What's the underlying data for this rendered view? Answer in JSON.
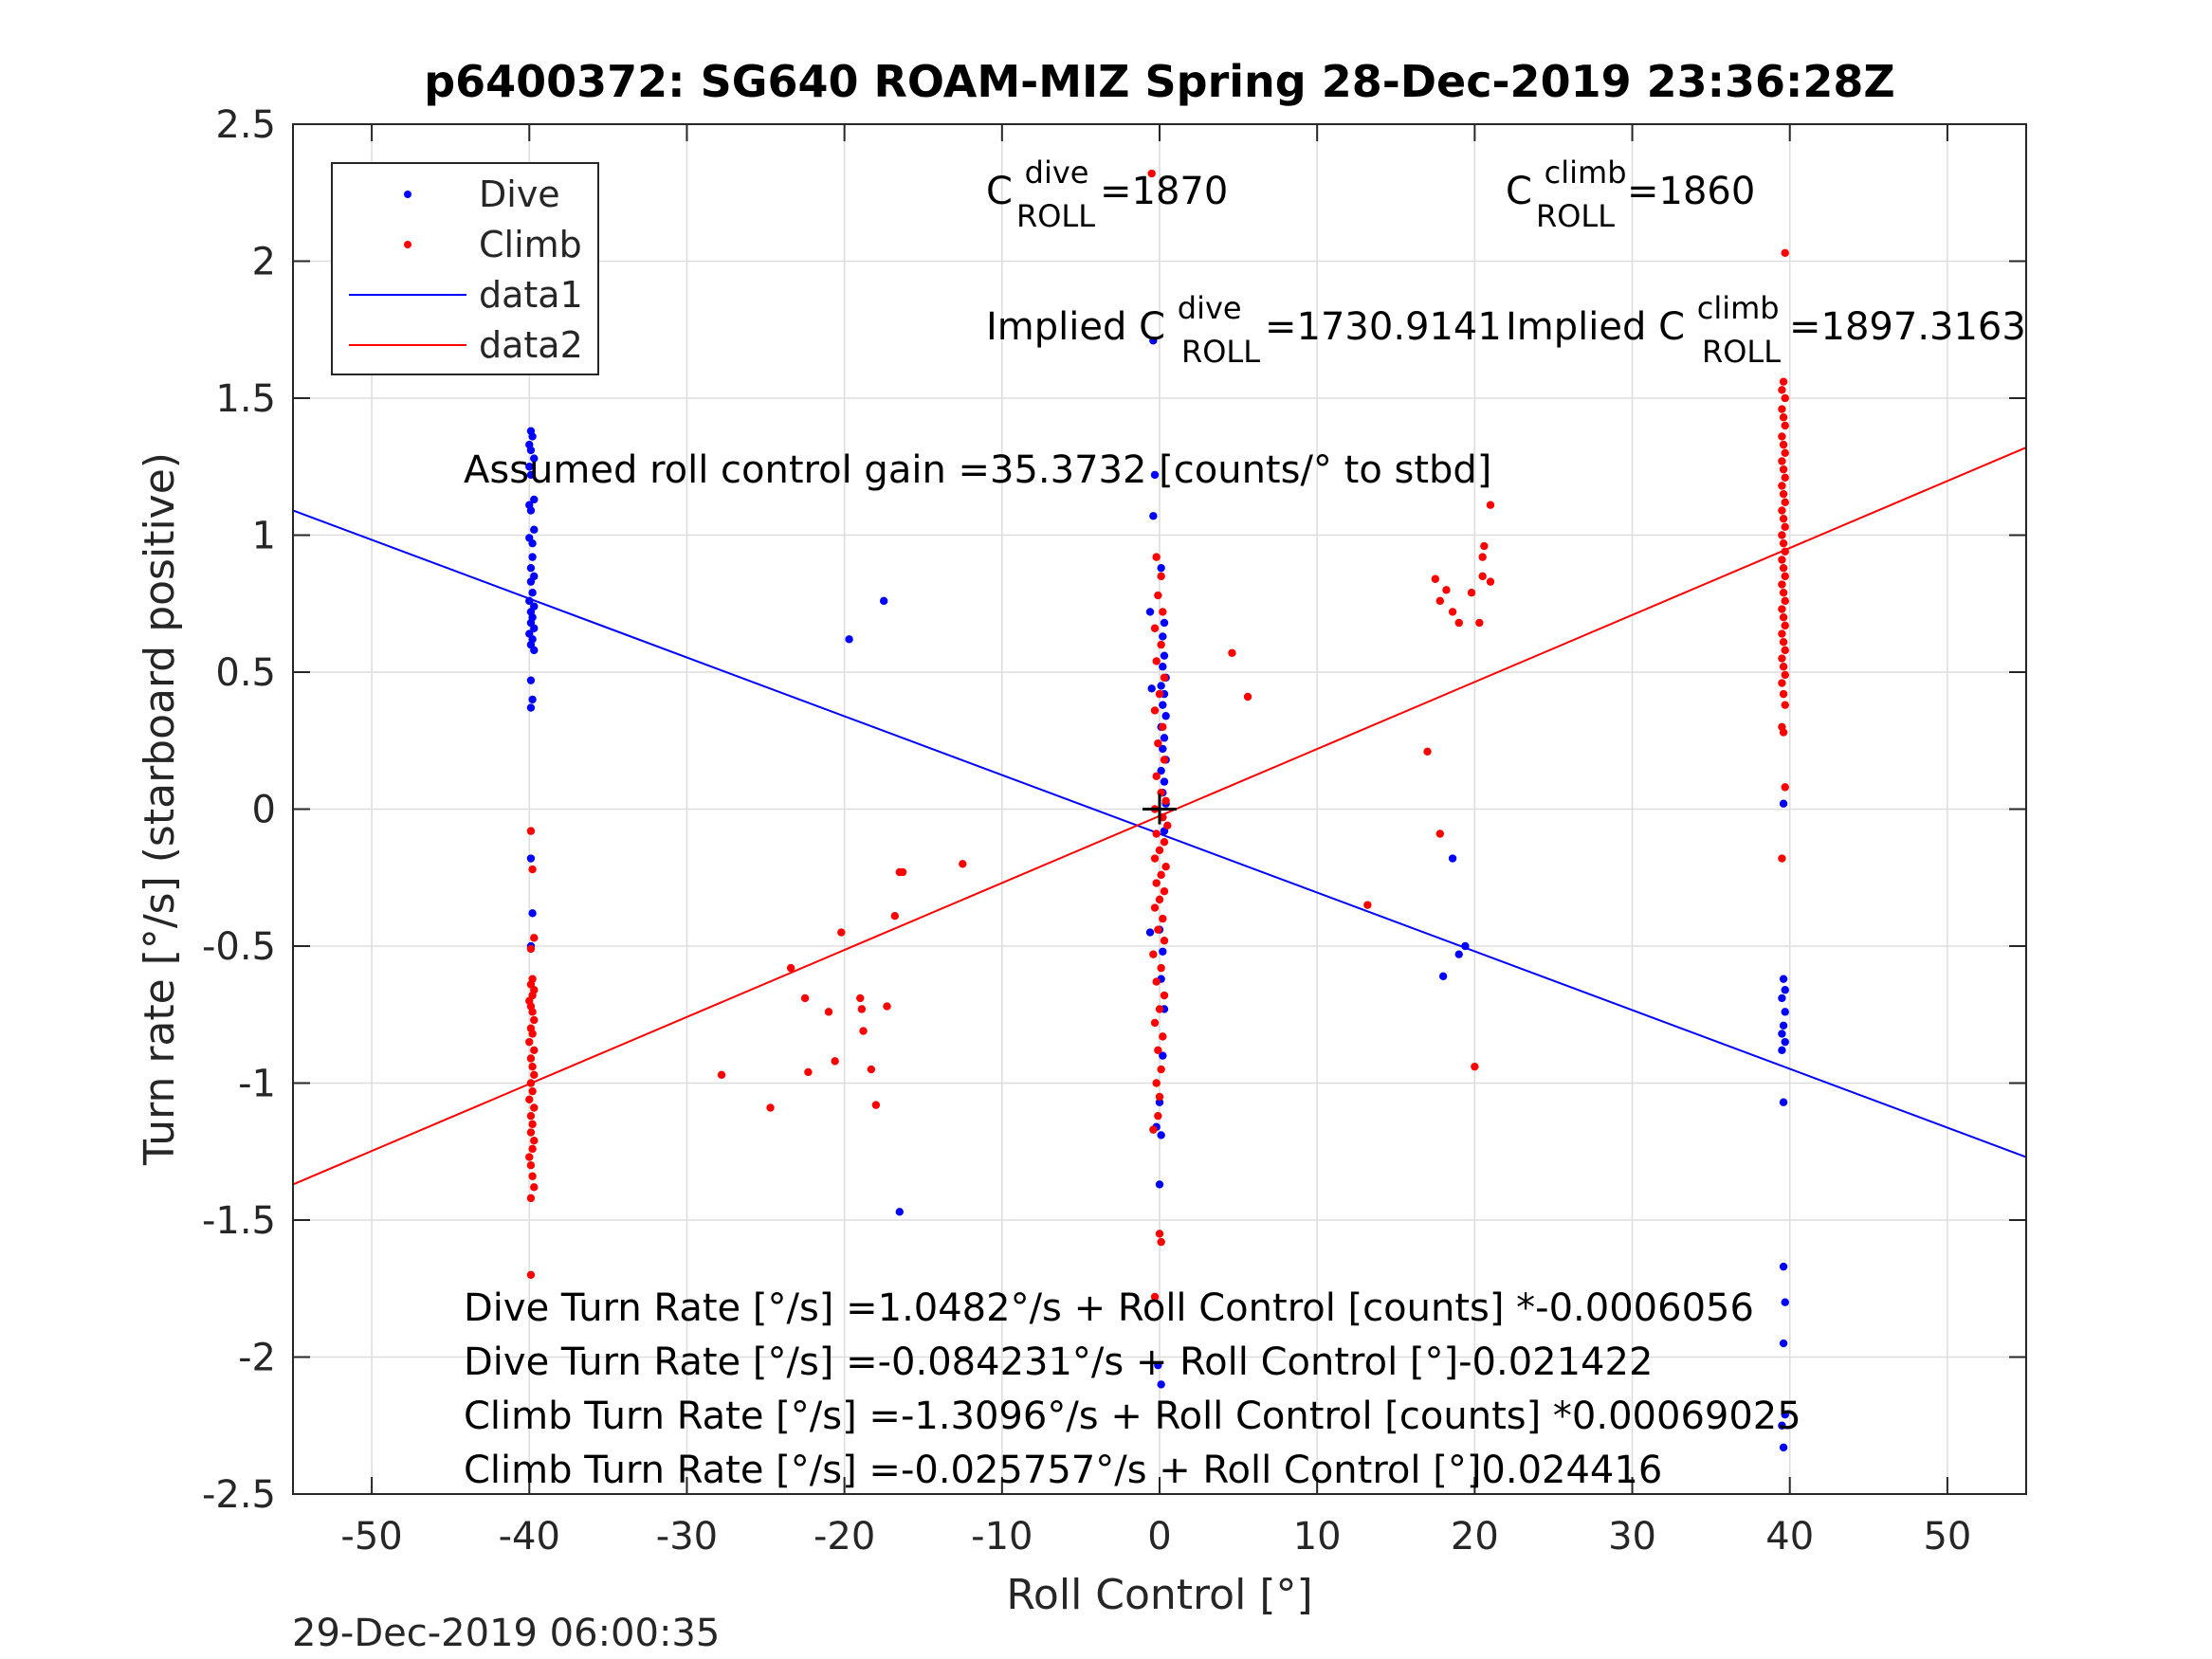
{
  "chart_data": {
    "type": "scatter",
    "title": "p6400372: SG640 ROAM-MIZ Spring 28-Dec-2019 23:36:28Z",
    "xlabel": "Roll Control [°]",
    "ylabel": "Turn rate [°/s] (starboard positive)",
    "xlim": [
      -55,
      55
    ],
    "ylim": [
      -2.5,
      2.5
    ],
    "grid": true,
    "legend_position": "top-left",
    "x_ticks": [
      -50,
      -40,
      -30,
      -20,
      -10,
      0,
      10,
      20,
      30,
      40,
      50
    ],
    "x_tick_labels": [
      "-50",
      "-40",
      "-30",
      "-20",
      "-10",
      "0",
      "10",
      "20",
      "30",
      "40",
      "50"
    ],
    "y_ticks": [
      -2.5,
      -2,
      -1.5,
      -1,
      -0.5,
      0,
      0.5,
      1,
      1.5,
      2,
      2.5
    ],
    "y_tick_labels": [
      "-2.5",
      "-2",
      "-1.5",
      "-1",
      "-0.5",
      "0",
      "0.5",
      "1",
      "1.5",
      "2",
      "2.5"
    ],
    "legend": [
      "Dive",
      "Climb",
      "data1",
      "data2"
    ],
    "colors": {
      "dive": "#0000ff",
      "climb": "#ff0000",
      "center_mark": "#000000"
    },
    "series": [
      {
        "name": "Dive",
        "kind": "points",
        "color": "#0000ff",
        "points": [
          [
            -39.9,
            1.38
          ],
          [
            -39.8,
            1.36
          ],
          [
            -40.0,
            1.33
          ],
          [
            -39.9,
            1.31
          ],
          [
            -39.7,
            1.28
          ],
          [
            -40.0,
            1.25
          ],
          [
            -39.9,
            1.22
          ],
          [
            -39.7,
            1.13
          ],
          [
            -40.0,
            1.11
          ],
          [
            -39.9,
            1.09
          ],
          [
            -39.7,
            1.02
          ],
          [
            -40.0,
            0.99
          ],
          [
            -39.8,
            0.97
          ],
          [
            -39.8,
            0.92
          ],
          [
            -39.9,
            0.88
          ],
          [
            -39.7,
            0.85
          ],
          [
            -39.9,
            0.83
          ],
          [
            -39.8,
            0.79
          ],
          [
            -40.0,
            0.76
          ],
          [
            -39.7,
            0.74
          ],
          [
            -39.9,
            0.72
          ],
          [
            -39.8,
            0.7
          ],
          [
            -39.9,
            0.68
          ],
          [
            -39.7,
            0.66
          ],
          [
            -40.0,
            0.64
          ],
          [
            -39.8,
            0.62
          ],
          [
            -39.9,
            0.6
          ],
          [
            -39.7,
            0.58
          ],
          [
            -39.9,
            0.47
          ],
          [
            -39.8,
            0.4
          ],
          [
            -39.9,
            0.37
          ],
          [
            -39.9,
            -0.18
          ],
          [
            -39.8,
            -0.38
          ],
          [
            -39.9,
            -0.5
          ],
          [
            -19.7,
            0.62
          ],
          [
            -17.5,
            0.76
          ],
          [
            -16.5,
            -1.47
          ],
          [
            -0.6,
            0.72
          ],
          [
            -0.5,
            0.44
          ],
          [
            -0.6,
            -0.45
          ],
          [
            -0.4,
            1.71
          ],
          [
            -0.3,
            1.22
          ],
          [
            -0.4,
            1.07
          ],
          [
            0.1,
            0.88
          ],
          [
            0.3,
            0.68
          ],
          [
            0.2,
            0.63
          ],
          [
            0.3,
            0.56
          ],
          [
            0.2,
            0.52
          ],
          [
            0.4,
            0.48
          ],
          [
            0.1,
            0.45
          ],
          [
            0.3,
            0.42
          ],
          [
            0.2,
            0.38
          ],
          [
            0.4,
            0.34
          ],
          [
            0.1,
            0.3
          ],
          [
            0.3,
            0.26
          ],
          [
            0.2,
            0.22
          ],
          [
            0.4,
            0.18
          ],
          [
            0.1,
            0.14
          ],
          [
            0.3,
            0.1
          ],
          [
            0.2,
            0.06
          ],
          [
            0.4,
            0.02
          ],
          [
            0.2,
            -0.03
          ],
          [
            0.3,
            -0.08
          ],
          [
            0.0,
            -0.44
          ],
          [
            0.2,
            -0.52
          ],
          [
            0.1,
            -0.62
          ],
          [
            0.3,
            -0.73
          ],
          [
            0.2,
            -0.9
          ],
          [
            0.0,
            -1.07
          ],
          [
            -0.2,
            -1.16
          ],
          [
            0.1,
            -1.19
          ],
          [
            0.0,
            -1.37
          ],
          [
            -0.1,
            -2.03
          ],
          [
            0.1,
            -2.1
          ],
          [
            18.0,
            -0.61
          ],
          [
            18.6,
            -0.18
          ],
          [
            19.0,
            -0.53
          ],
          [
            19.4,
            -0.5
          ],
          [
            39.6,
            0.02
          ],
          [
            39.6,
            -0.62
          ],
          [
            39.7,
            -0.66
          ],
          [
            39.5,
            -0.69
          ],
          [
            39.7,
            -0.74
          ],
          [
            39.6,
            -0.79
          ],
          [
            39.5,
            -0.82
          ],
          [
            39.7,
            -0.85
          ],
          [
            39.5,
            -0.88
          ],
          [
            39.6,
            -1.07
          ],
          [
            39.6,
            -1.67
          ],
          [
            39.7,
            -1.8
          ],
          [
            39.6,
            -1.95
          ],
          [
            39.7,
            -2.21
          ],
          [
            39.5,
            -2.25
          ],
          [
            39.6,
            -2.33
          ]
        ]
      },
      {
        "name": "Climb",
        "kind": "points",
        "color": "#ff0000",
        "points": [
          [
            -39.9,
            -0.08
          ],
          [
            -39.8,
            -0.22
          ],
          [
            -39.7,
            -0.47
          ],
          [
            -39.9,
            -0.51
          ],
          [
            -39.8,
            -0.62
          ],
          [
            -39.9,
            -0.64
          ],
          [
            -39.7,
            -0.66
          ],
          [
            -39.8,
            -0.68
          ],
          [
            -40.0,
            -0.7
          ],
          [
            -39.9,
            -0.72
          ],
          [
            -39.8,
            -0.74
          ],
          [
            -39.7,
            -0.77
          ],
          [
            -39.9,
            -0.8
          ],
          [
            -39.8,
            -0.82
          ],
          [
            -40.0,
            -0.85
          ],
          [
            -39.7,
            -0.88
          ],
          [
            -39.9,
            -0.91
          ],
          [
            -39.8,
            -0.94
          ],
          [
            -39.7,
            -0.97
          ],
          [
            -39.9,
            -1.0
          ],
          [
            -39.8,
            -1.03
          ],
          [
            -40.0,
            -1.06
          ],
          [
            -39.7,
            -1.09
          ],
          [
            -39.9,
            -1.12
          ],
          [
            -39.8,
            -1.15
          ],
          [
            -39.9,
            -1.18
          ],
          [
            -39.7,
            -1.21
          ],
          [
            -39.8,
            -1.24
          ],
          [
            -40.0,
            -1.27
          ],
          [
            -39.9,
            -1.3
          ],
          [
            -39.8,
            -1.34
          ],
          [
            -39.7,
            -1.38
          ],
          [
            -39.9,
            -1.42
          ],
          [
            -39.9,
            -1.7
          ],
          [
            -27.8,
            -0.97
          ],
          [
            -24.7,
            -1.09
          ],
          [
            -23.4,
            -0.58
          ],
          [
            -22.5,
            -0.69
          ],
          [
            -22.3,
            -0.96
          ],
          [
            -21.0,
            -0.74
          ],
          [
            -20.6,
            -0.92
          ],
          [
            -20.2,
            -0.45
          ],
          [
            -19.0,
            -0.69
          ],
          [
            -18.9,
            -0.73
          ],
          [
            -18.8,
            -0.81
          ],
          [
            -18.3,
            -0.95
          ],
          [
            -18.0,
            -1.08
          ],
          [
            -17.3,
            -0.72
          ],
          [
            -16.8,
            -0.39
          ],
          [
            -16.5,
            -0.23
          ],
          [
            -16.3,
            -0.23
          ],
          [
            -12.5,
            -0.2
          ],
          [
            -0.5,
            2.32
          ],
          [
            -0.2,
            0.92
          ],
          [
            0.1,
            0.85
          ],
          [
            -0.1,
            0.78
          ],
          [
            0.2,
            0.72
          ],
          [
            -0.3,
            0.66
          ],
          [
            0.1,
            0.6
          ],
          [
            -0.2,
            0.54
          ],
          [
            0.3,
            0.48
          ],
          [
            0.0,
            0.42
          ],
          [
            -0.3,
            0.36
          ],
          [
            0.2,
            0.3
          ],
          [
            -0.1,
            0.24
          ],
          [
            0.3,
            0.18
          ],
          [
            -0.2,
            0.12
          ],
          [
            0.1,
            0.06
          ],
          [
            0.4,
            0.03
          ],
          [
            -0.3,
            0.0
          ],
          [
            0.2,
            -0.03
          ],
          [
            0.5,
            -0.06
          ],
          [
            -0.2,
            -0.09
          ],
          [
            0.3,
            -0.12
          ],
          [
            0.0,
            -0.15
          ],
          [
            -0.3,
            -0.18
          ],
          [
            0.4,
            -0.21
          ],
          [
            0.1,
            -0.24
          ],
          [
            -0.2,
            -0.27
          ],
          [
            0.3,
            -0.3
          ],
          [
            0.0,
            -0.33
          ],
          [
            -0.3,
            -0.36
          ],
          [
            0.2,
            -0.4
          ],
          [
            -0.1,
            -0.44
          ],
          [
            0.3,
            -0.48
          ],
          [
            -0.4,
            -0.53
          ],
          [
            0.1,
            -0.58
          ],
          [
            -0.2,
            -0.63
          ],
          [
            0.3,
            -0.68
          ],
          [
            0.0,
            -0.73
          ],
          [
            -0.3,
            -0.78
          ],
          [
            0.2,
            -0.83
          ],
          [
            -0.1,
            -0.88
          ],
          [
            0.1,
            -0.95
          ],
          [
            -0.2,
            -1.0
          ],
          [
            0.0,
            -1.05
          ],
          [
            -0.1,
            -1.12
          ],
          [
            -0.4,
            -1.17
          ],
          [
            -0.3,
            -1.78
          ],
          [
            0.0,
            -1.55
          ],
          [
            0.1,
            -1.58
          ],
          [
            4.6,
            0.57
          ],
          [
            5.6,
            0.41
          ],
          [
            13.2,
            -0.35
          ],
          [
            17.0,
            0.21
          ],
          [
            17.5,
            0.84
          ],
          [
            17.8,
            0.76
          ],
          [
            17.8,
            -0.09
          ],
          [
            18.2,
            0.8
          ],
          [
            18.6,
            0.72
          ],
          [
            19.0,
            0.68
          ],
          [
            19.8,
            0.79
          ],
          [
            20.0,
            -0.94
          ],
          [
            20.3,
            0.68
          ],
          [
            20.5,
            0.85
          ],
          [
            20.5,
            0.92
          ],
          [
            20.6,
            0.96
          ],
          [
            21.0,
            0.83
          ],
          [
            21.0,
            1.11
          ],
          [
            39.7,
            2.03
          ],
          [
            39.6,
            1.56
          ],
          [
            39.5,
            1.53
          ],
          [
            39.7,
            1.5
          ],
          [
            39.5,
            1.46
          ],
          [
            39.6,
            1.43
          ],
          [
            39.7,
            1.4
          ],
          [
            39.5,
            1.36
          ],
          [
            39.6,
            1.33
          ],
          [
            39.7,
            1.3
          ],
          [
            39.5,
            1.27
          ],
          [
            39.6,
            1.24
          ],
          [
            39.7,
            1.21
          ],
          [
            39.5,
            1.18
          ],
          [
            39.6,
            1.15
          ],
          [
            39.7,
            1.12
          ],
          [
            39.5,
            1.09
          ],
          [
            39.6,
            1.06
          ],
          [
            39.7,
            1.03
          ],
          [
            39.5,
            1.0
          ],
          [
            39.6,
            0.97
          ],
          [
            39.7,
            0.94
          ],
          [
            39.5,
            0.91
          ],
          [
            39.6,
            0.88
          ],
          [
            39.7,
            0.85
          ],
          [
            39.5,
            0.82
          ],
          [
            39.6,
            0.79
          ],
          [
            39.7,
            0.76
          ],
          [
            39.5,
            0.73
          ],
          [
            39.6,
            0.7
          ],
          [
            39.7,
            0.67
          ],
          [
            39.5,
            0.64
          ],
          [
            39.6,
            0.61
          ],
          [
            39.7,
            0.58
          ],
          [
            39.5,
            0.55
          ],
          [
            39.6,
            0.52
          ],
          [
            39.7,
            0.49
          ],
          [
            39.5,
            0.46
          ],
          [
            39.6,
            0.42
          ],
          [
            39.7,
            0.38
          ],
          [
            39.5,
            0.3
          ],
          [
            39.6,
            0.28
          ],
          [
            39.7,
            0.08
          ],
          [
            39.5,
            -0.18
          ]
        ]
      },
      {
        "name": "data1",
        "kind": "line",
        "color": "#0000ff",
        "points": [
          [
            -55,
            1.09
          ],
          [
            55,
            -1.27
          ]
        ]
      },
      {
        "name": "data2",
        "kind": "line",
        "color": "#ff0000",
        "points": [
          [
            -55,
            -1.37
          ],
          [
            55,
            1.32
          ]
        ]
      }
    ],
    "center_mark": [
      0,
      0
    ],
    "annotations": {
      "c_roll_dive": {
        "base": "C",
        "sup": "dive",
        "sub": "ROLL",
        "value": " =1870"
      },
      "c_roll_climb": {
        "base": "C",
        "sup": "climb",
        "sub": "ROLL",
        "value": " =1860"
      },
      "implied_dive": {
        "prefix": "Implied C",
        "sup": "dive",
        "sub": "ROLL",
        "value": " =1730.9141"
      },
      "implied_climb": {
        "prefix": "Implied C",
        "sup": "climb",
        "sub": "ROLL",
        "value": " =1897.3163"
      },
      "gain": "Assumed roll control gain =35.3732 [counts/° to stbd]",
      "eq1": "Dive Turn Rate [°/s] =1.0482°/s + Roll Control [counts] *-0.0006056",
      "eq2": "Dive Turn Rate [°/s] =-0.084231°/s + Roll Control [°]-0.021422",
      "eq3": "Climb Turn Rate [°/s] =-1.3096°/s + Roll Control [counts] *0.00069025",
      "eq4": "Climb Turn Rate [°/s] =-0.025757°/s + Roll Control [°]0.024416"
    },
    "timestamp": "29-Dec-2019 06:00:35"
  }
}
